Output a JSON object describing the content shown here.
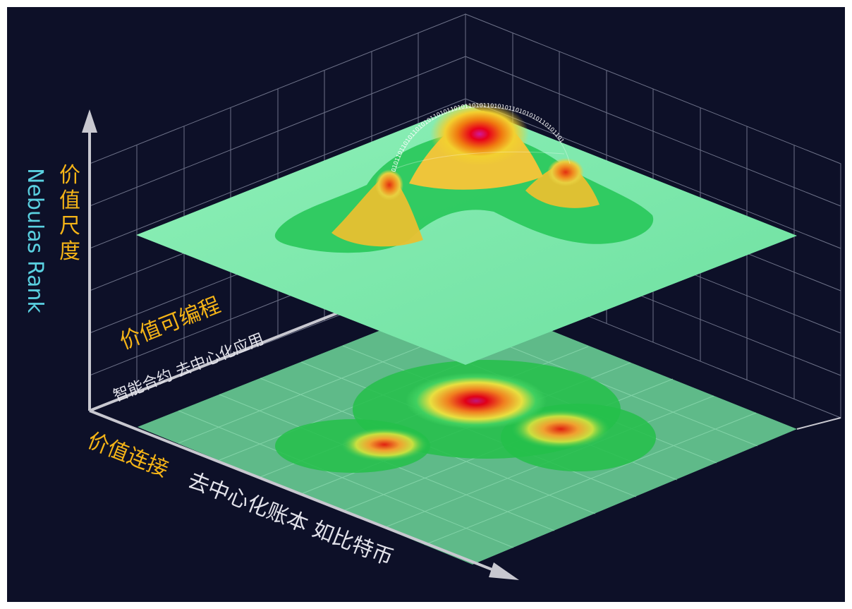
{
  "diagram": {
    "y_axis_title": {
      "label_zh": "价值尺度",
      "label_en": "Nebulas Rank"
    },
    "depth_axis": {
      "label_zh": "价值可编程",
      "sublabel": "智能合约 去中心化应用"
    },
    "x_axis": {
      "label_zh": "价值连接",
      "sublabel": "去中心化账本 如比特币"
    },
    "binary_arc_text": "0101101101011010101101011010110101101010110101010110101101",
    "colors": {
      "background": "#0d1028",
      "frame_white": "#ffffff",
      "grid_line": "#8a8fa8",
      "axis": "#c8c8d0",
      "orange_label": "#f5b417",
      "cyan_label": "#5ad0e0",
      "plane_green": "#7de8a8",
      "peak_red": "#e8001a",
      "peak_magenta": "#d01a9a"
    }
  }
}
